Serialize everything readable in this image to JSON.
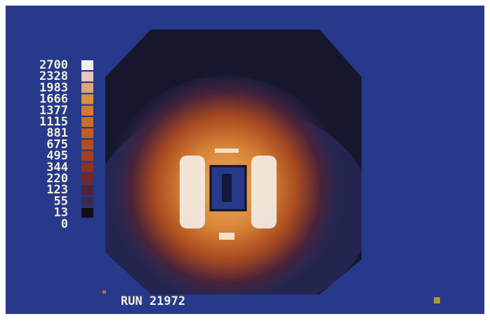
{
  "legend": {
    "levels": [
      {
        "label": "2700",
        "color": "#f2eeee"
      },
      {
        "label": "2328",
        "color": "#e8c8bc"
      },
      {
        "label": "1983",
        "color": "#e2a874"
      },
      {
        "label": "1666",
        "color": "#d8903e"
      },
      {
        "label": "1377",
        "color": "#d07e2e"
      },
      {
        "label": "1115",
        "color": "#c86e26"
      },
      {
        "label": "881",
        "color": "#c05e22"
      },
      {
        "label": "675",
        "color": "#b44e20"
      },
      {
        "label": "495",
        "color": "#a4401e"
      },
      {
        "label": "344",
        "color": "#8e3222"
      },
      {
        "label": "220",
        "color": "#742628"
      },
      {
        "label": "123",
        "color": "#542236"
      },
      {
        "label": "55",
        "color": "#382a56"
      },
      {
        "label": "13",
        "color": "#0e0e16"
      },
      {
        "label": "0",
        "color": "#26398a"
      }
    ]
  },
  "run_label": "RUN 21972"
}
